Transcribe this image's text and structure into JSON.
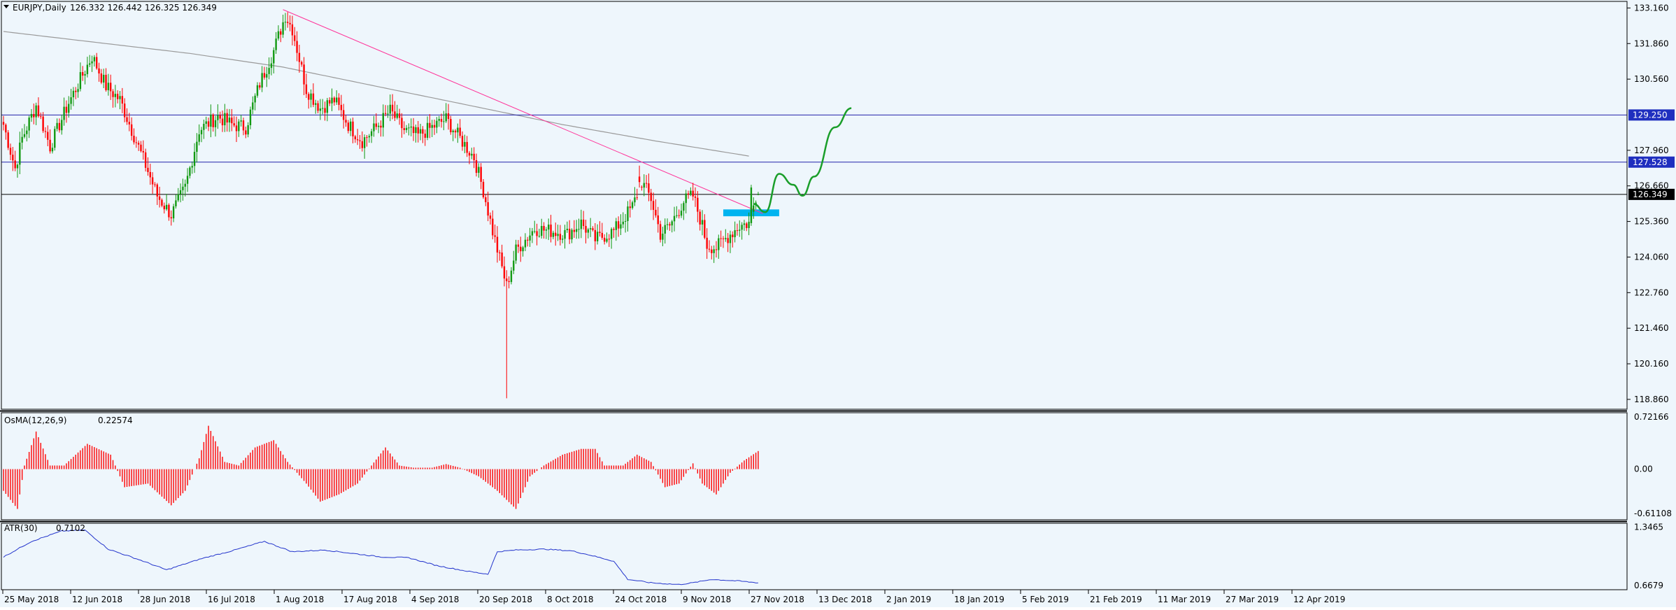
{
  "symbol_label": "EURJPY,Daily",
  "ohlc_label": "126.332 126.442 126.325 126.349",
  "colors": {
    "background": "#eef6fc",
    "up_candle": "#119911",
    "down_candle": "#ff0000",
    "ma_line": "#9a9a9a",
    "trendline": "#ff3399",
    "level_line": "#2222aa",
    "current_line": "#000000",
    "demand_zone": "#00b4f0",
    "projection": "#1a9e2a",
    "atr_line": "#2233cc",
    "osma_bar": "#ff0000"
  },
  "chart_data": [
    {
      "type": "candlestick",
      "panel": "price",
      "title": "EURJPY,Daily",
      "x_labels": [
        "25 May 2018",
        "12 Jun 2018",
        "28 Jun 2018",
        "16 Jul 2018",
        "1 Aug 2018",
        "17 Aug 2018",
        "4 Sep 2018",
        "20 Sep 2018",
        "8 Oct 2018",
        "24 Oct 2018",
        "9 Nov 2018",
        "27 Nov 2018",
        "13 Dec 2018",
        "2 Jan 2019",
        "18 Jan 2019",
        "5 Feb 2019",
        "21 Feb 2019",
        "11 Mar 2019",
        "27 Mar 2019",
        "12 Apr 2019"
      ],
      "y_ticks": [
        "133.160",
        "131.860",
        "130.560",
        "127.960",
        "126.660",
        "125.360",
        "124.060",
        "122.760",
        "121.460",
        "120.160",
        "118.860"
      ],
      "ylim": [
        118.5,
        133.4
      ],
      "anchors": [
        [
          0,
          128.9
        ],
        [
          5,
          127.3
        ],
        [
          8,
          128.4
        ],
        [
          14,
          129.6
        ],
        [
          20,
          128.1
        ],
        [
          28,
          129.7
        ],
        [
          38,
          131.4
        ],
        [
          44,
          130.3
        ],
        [
          50,
          129.8
        ],
        [
          56,
          128.5
        ],
        [
          62,
          127.2
        ],
        [
          66,
          126.3
        ],
        [
          72,
          125.6
        ],
        [
          78,
          126.6
        ],
        [
          84,
          128.7
        ],
        [
          92,
          129.2
        ],
        [
          98,
          128.9
        ],
        [
          104,
          128.8
        ],
        [
          110,
          130.4
        ],
        [
          116,
          131.6
        ],
        [
          121,
          132.9
        ],
        [
          124,
          132.4
        ],
        [
          130,
          130.2
        ],
        [
          136,
          129.5
        ],
        [
          142,
          129.8
        ],
        [
          148,
          128.9
        ],
        [
          154,
          128.3
        ],
        [
          160,
          128.8
        ],
        [
          166,
          129.4
        ],
        [
          172,
          128.7
        ],
        [
          178,
          128.5
        ],
        [
          184,
          128.8
        ],
        [
          190,
          129.1
        ],
        [
          196,
          128.4
        ],
        [
          202,
          127.7
        ],
        [
          206,
          126.5
        ],
        [
          210,
          125.0
        ],
        [
          216,
          123.0
        ],
        [
          220,
          124.3
        ],
        [
          228,
          125.1
        ],
        [
          236,
          125.0
        ],
        [
          242,
          124.9
        ],
        [
          248,
          125.3
        ],
        [
          254,
          124.7
        ],
        [
          262,
          125.0
        ],
        [
          270,
          125.9
        ],
        [
          274,
          126.8
        ],
        [
          276,
          126.5
        ],
        [
          278,
          126.2
        ],
        [
          282,
          124.9
        ],
        [
          286,
          125.2
        ],
        [
          292,
          126.1
        ],
        [
          296,
          126.3
        ],
        [
          300,
          125.2
        ],
        [
          302,
          124.5
        ],
        [
          306,
          124.4
        ],
        [
          312,
          124.9
        ],
        [
          316,
          125.2
        ],
        [
          320,
          125.3
        ],
        [
          324,
          126.6
        ]
      ],
      "highlight_candles": [
        [
          273,
          127.0,
          127.4,
          126.6,
          126.8
        ],
        [
          321,
          125.3,
          126.7,
          125.2,
          126.6
        ],
        [
          324,
          126.33,
          126.44,
          126.32,
          126.35
        ]
      ],
      "spike_low": [
        216,
        118.9
      ],
      "price_labels": [
        {
          "text": "129.250",
          "value": 129.25
        },
        {
          "text": "127.528",
          "value": 127.528
        },
        {
          "text": "126.349",
          "value": 126.349
        }
      ],
      "moving_average": [
        [
          0,
          132.3
        ],
        [
          40,
          131.9
        ],
        [
          80,
          131.5
        ],
        [
          120,
          131.0
        ],
        [
          160,
          130.3
        ],
        [
          200,
          129.6
        ],
        [
          240,
          128.9
        ],
        [
          280,
          128.3
        ],
        [
          320,
          127.75
        ]
      ],
      "trendline": [
        [
          120,
          133.1
        ],
        [
          326,
          125.65
        ]
      ],
      "demand_zone": {
        "x_start": 309,
        "x_end": 333,
        "y_low": 125.55,
        "y_high": 125.8
      },
      "projection": [
        [
          322,
          126.0
        ],
        [
          327,
          125.7
        ],
        [
          333,
          127.1
        ],
        [
          339,
          126.7
        ],
        [
          343,
          126.3
        ],
        [
          348,
          127.0
        ],
        [
          357,
          128.8
        ],
        [
          364,
          129.5
        ]
      ]
    },
    {
      "type": "bar",
      "panel": "oscillator",
      "name": "OsMA(12,26,9)",
      "value_label": "0.22574",
      "y_ticks": [
        "0.72166",
        "0.00",
        "-0.61108"
      ],
      "ylim": [
        -0.7,
        0.78
      ],
      "anchors": [
        [
          0,
          -0.3
        ],
        [
          6,
          -0.55
        ],
        [
          9,
          0.05
        ],
        [
          14,
          0.52
        ],
        [
          20,
          0.05
        ],
        [
          26,
          0.05
        ],
        [
          36,
          0.35
        ],
        [
          46,
          0.2
        ],
        [
          52,
          -0.25
        ],
        [
          62,
          -0.2
        ],
        [
          72,
          -0.5
        ],
        [
          78,
          -0.3
        ],
        [
          84,
          0.15
        ],
        [
          88,
          0.6
        ],
        [
          95,
          0.1
        ],
        [
          101,
          0.05
        ],
        [
          108,
          0.3
        ],
        [
          116,
          0.4
        ],
        [
          122,
          0.1
        ],
        [
          130,
          -0.2
        ],
        [
          136,
          -0.45
        ],
        [
          144,
          -0.35
        ],
        [
          152,
          -0.2
        ],
        [
          158,
          0.05
        ],
        [
          164,
          0.3
        ],
        [
          170,
          0.05
        ],
        [
          176,
          0.02
        ],
        [
          184,
          0.02
        ],
        [
          190,
          0.07
        ],
        [
          196,
          0.02
        ],
        [
          204,
          -0.1
        ],
        [
          212,
          -0.3
        ],
        [
          220,
          -0.55
        ],
        [
          226,
          -0.1
        ],
        [
          232,
          0.05
        ],
        [
          240,
          0.2
        ],
        [
          248,
          0.28
        ],
        [
          254,
          0.28
        ],
        [
          258,
          0.05
        ],
        [
          266,
          0.05
        ],
        [
          272,
          0.2
        ],
        [
          278,
          0.1
        ],
        [
          284,
          -0.25
        ],
        [
          290,
          -0.2
        ],
        [
          296,
          0.08
        ],
        [
          300,
          -0.2
        ],
        [
          306,
          -0.35
        ],
        [
          312,
          -0.05
        ],
        [
          318,
          0.12
        ],
        [
          324,
          0.25
        ]
      ]
    },
    {
      "type": "line",
      "panel": "indicator",
      "name": "ATR(30)",
      "value_label": "0.7102",
      "y_ticks": [
        "1.3465",
        "0.6679"
      ],
      "ylim": [
        0.62,
        1.39
      ],
      "points": [
        [
          0,
          1.0
        ],
        [
          12,
          1.18
        ],
        [
          25,
          1.3
        ],
        [
          35,
          1.31
        ],
        [
          45,
          1.09
        ],
        [
          58,
          0.97
        ],
        [
          70,
          0.85
        ],
        [
          85,
          0.98
        ],
        [
          98,
          1.07
        ],
        [
          112,
          1.18
        ],
        [
          124,
          1.06
        ],
        [
          138,
          1.08
        ],
        [
          150,
          1.04
        ],
        [
          162,
          1.0
        ],
        [
          174,
          0.99
        ],
        [
          186,
          0.9
        ],
        [
          200,
          0.83
        ],
        [
          208,
          0.8
        ],
        [
          212,
          1.06
        ],
        [
          220,
          1.08
        ],
        [
          232,
          1.09
        ],
        [
          244,
          1.07
        ],
        [
          252,
          1.02
        ],
        [
          262,
          0.95
        ],
        [
          268,
          0.74
        ],
        [
          278,
          0.7
        ],
        [
          290,
          0.68
        ],
        [
          296,
          0.7
        ],
        [
          304,
          0.74
        ],
        [
          316,
          0.72
        ],
        [
          324,
          0.7
        ]
      ]
    }
  ]
}
